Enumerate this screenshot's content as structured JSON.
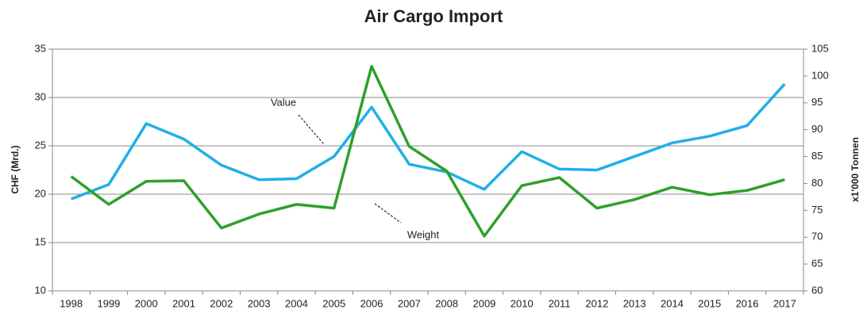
{
  "chart_data": {
    "type": "line",
    "title": "Air Cargo Import",
    "y_label": "CHF (Mrd.)",
    "y2_label": "x1'000 Tonnen",
    "categories": [
      "1998",
      "1999",
      "2000",
      "2001",
      "2002",
      "2003",
      "2004",
      "2005",
      "2006",
      "2007",
      "2008",
      "2009",
      "2010",
      "2011",
      "2012",
      "2013",
      "2014",
      "2015",
      "2016",
      "2017"
    ],
    "series": [
      {
        "name": "Value",
        "color": "#1fb0e6",
        "values": [
          19.5,
          21.0,
          27.3,
          25.7,
          23.0,
          21.5,
          21.6,
          23.9,
          29.0,
          23.1,
          22.3,
          20.5,
          24.4,
          22.6,
          22.5,
          23.9,
          25.3,
          26.0,
          27.1,
          31.4
        ]
      },
      {
        "name": "Weight",
        "color": "#2ea02c",
        "axis": "y2",
        "values": [
          81.3,
          76.1,
          80.4,
          80.5,
          71.7,
          74.3,
          76.1,
          75.4,
          101.8,
          86.9,
          82.3,
          70.2,
          79.6,
          81.1,
          75.4,
          77.0,
          79.3,
          77.9,
          78.7,
          80.7
        ]
      }
    ],
    "ylim": [
      10,
      35
    ],
    "yticks": [
      10,
      15,
      20,
      25,
      30,
      35
    ],
    "y2lim": [
      60,
      105
    ],
    "y2ticks": [
      60,
      65,
      70,
      75,
      80,
      85,
      90,
      95,
      100,
      105
    ],
    "grid": true,
    "legend": false
  }
}
